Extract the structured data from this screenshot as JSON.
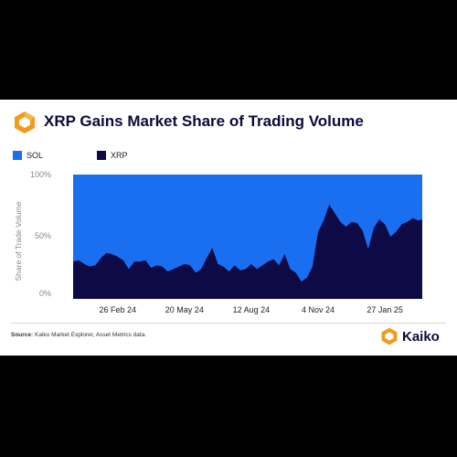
{
  "header": {
    "title": "XRP Gains Market Share of Trading Volume"
  },
  "legend": [
    {
      "label": "SOL",
      "color": "#1a6ff0"
    },
    {
      "label": "XRP",
      "color": "#0d0a45"
    }
  ],
  "footer": {
    "source_label": "Source:",
    "source_text": "Kaiko Market Explorer, Asset Metrics data.",
    "brand_name": "Kaiko",
    "brand_color": "#f29a1d"
  },
  "chart_data": {
    "type": "area",
    "stacked": true,
    "ylabel": "Share of Trade Volume",
    "ylim": [
      0,
      100
    ],
    "yticks": [
      "0%",
      "50%",
      "100%"
    ],
    "xticks": [
      "26 Feb 24",
      "20 May 24",
      "12 Aug 24",
      "4 Nov 24",
      "27 Jan 25"
    ],
    "x_start": "2024-01-01",
    "x_end": "2025-03-15",
    "x_tick_dates": [
      "2024-02-26",
      "2024-05-20",
      "2024-08-12",
      "2024-11-04",
      "2025-01-27"
    ],
    "series": [
      {
        "name": "XRP",
        "color": "#0d0a45",
        "x": [
          "2024-01-01",
          "2024-01-08",
          "2024-01-15",
          "2024-01-22",
          "2024-01-29",
          "2024-02-05",
          "2024-02-12",
          "2024-02-19",
          "2024-02-26",
          "2024-03-04",
          "2024-03-11",
          "2024-03-18",
          "2024-03-25",
          "2024-04-01",
          "2024-04-08",
          "2024-04-15",
          "2024-04-22",
          "2024-04-29",
          "2024-05-06",
          "2024-05-13",
          "2024-05-20",
          "2024-05-27",
          "2024-06-03",
          "2024-06-10",
          "2024-06-17",
          "2024-06-24",
          "2024-07-01",
          "2024-07-08",
          "2024-07-15",
          "2024-07-22",
          "2024-07-29",
          "2024-08-05",
          "2024-08-12",
          "2024-08-19",
          "2024-08-26",
          "2024-09-02",
          "2024-09-09",
          "2024-09-16",
          "2024-09-23",
          "2024-09-30",
          "2024-10-07",
          "2024-10-14",
          "2024-10-21",
          "2024-10-28",
          "2024-11-04",
          "2024-11-11",
          "2024-11-18",
          "2024-11-25",
          "2024-12-02",
          "2024-12-09",
          "2024-12-16",
          "2024-12-23",
          "2024-12-30",
          "2025-01-06",
          "2025-01-13",
          "2025-01-20",
          "2025-01-27",
          "2025-02-03",
          "2025-02-10",
          "2025-02-17",
          "2025-02-24",
          "2025-03-03",
          "2025-03-10",
          "2025-03-15"
        ],
        "values": [
          30,
          31,
          28,
          26,
          27,
          33,
          37,
          36,
          34,
          31,
          24,
          30,
          30,
          31,
          25,
          27,
          26,
          22,
          24,
          26,
          28,
          27,
          21,
          24,
          33,
          41,
          28,
          26,
          22,
          27,
          23,
          24,
          28,
          24,
          27,
          30,
          32,
          27,
          36,
          24,
          21,
          14,
          17,
          26,
          54,
          63,
          76,
          69,
          62,
          58,
          62,
          61,
          55,
          40,
          57,
          64,
          60,
          50,
          54,
          60,
          62,
          65,
          63,
          64
        ]
      },
      {
        "name": "SOL",
        "color": "#1a6ff0",
        "values": "remainder to 100%"
      }
    ]
  }
}
